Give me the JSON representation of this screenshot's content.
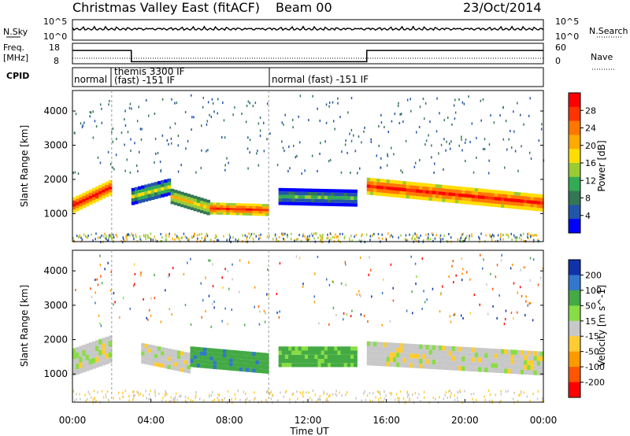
{
  "header": {
    "title": "Christmas Valley East (fitACF)",
    "beam": "Beam 00",
    "date": "23/Oct/2014"
  },
  "panels": {
    "nsky": {
      "label": "N.Sky",
      "ticks": [
        "10^5",
        "10^0"
      ],
      "right_ticks": [
        "10^5",
        "10^0"
      ],
      "right_label": "N.Search"
    },
    "freq": {
      "label": "Freq.",
      "unit": "[MHz]",
      "ticks": [
        "18",
        "8"
      ],
      "right_ticks": [
        "60",
        "0"
      ],
      "right_label": "Nave"
    },
    "cpid": {
      "label": "CPID",
      "segments": [
        {
          "text": "normal"
        },
        {
          "text": "themis 3300 IF"
        },
        {
          "text": "(fast) -151 IF"
        },
        {
          "text": "normal (fast) -151 IF"
        }
      ]
    }
  },
  "power_colorbar": {
    "label": "Power [dB]",
    "ticks": [
      "28",
      "24",
      "20",
      "16",
      "12",
      "8",
      "4"
    ],
    "colors": [
      "#ff0000",
      "#ff3300",
      "#ff7700",
      "#ffaa00",
      "#ffdd00",
      "#99cc33",
      "#33aa55",
      "#337755",
      "#2255aa",
      "#0000ff"
    ]
  },
  "velocity_colorbar": {
    "label": "Velocity [m s^-1]",
    "ticks": [
      "200",
      "100",
      "50",
      "15",
      "-15",
      "-50",
      "-100",
      "-200"
    ],
    "colors": [
      "#1133aa",
      "#3377cc",
      "#44aa44",
      "#88dd44",
      "#c8c8c8",
      "#ffcc33",
      "#ff9900",
      "#ff5500",
      "#ff0000"
    ]
  },
  "axes": {
    "ylabel": "Slant Range [km]",
    "yticks": [
      "4000",
      "3000",
      "2000",
      "1000"
    ],
    "xticks": [
      "00:00",
      "04:00",
      "08:00",
      "12:00",
      "16:00",
      "20:00",
      "00:00"
    ],
    "xlabel": "Time UT"
  },
  "chart_data": {
    "type": "heatmap",
    "title": "Christmas Valley East (fitACF) Beam 00  23/Oct/2014",
    "xlabel": "Time UT",
    "ylabel": "Slant Range [km]",
    "xlim_hours": [
      0,
      24
    ],
    "ylim_km": [
      180,
      4600
    ],
    "frequency_mhz": [
      {
        "start_hour": 0.0,
        "end_hour": 3.0,
        "freq": 14.5
      },
      {
        "start_hour": 3.0,
        "end_hour": 15.0,
        "freq": 9.0
      },
      {
        "start_hour": 15.0,
        "end_hour": 24.0,
        "freq": 14.5
      }
    ],
    "cpid_changes_hours": [
      2.0,
      10.0
    ],
    "power_bands": [
      {
        "start_hour": 0.0,
        "end_hour": 2.0,
        "range_center_km": [
          1250,
          1800
        ],
        "width_km": 450,
        "power_db": 28
      },
      {
        "start_hour": 3.0,
        "end_hour": 5.0,
        "range_center_km": [
          1500,
          1800
        ],
        "width_km": 500,
        "power_db": 14
      },
      {
        "start_hour": 5.0,
        "end_hour": 7.0,
        "range_center_km": [
          1500,
          1150
        ],
        "width_km": 450,
        "power_db": 18
      },
      {
        "start_hour": 7.0,
        "end_hour": 10.0,
        "range_center_km": [
          1150,
          1100
        ],
        "width_km": 350,
        "power_db": 26
      },
      {
        "start_hour": 10.5,
        "end_hour": 14.5,
        "range_center_km": [
          1500,
          1450
        ],
        "width_km": 500,
        "power_db": 10
      },
      {
        "start_hour": 15.0,
        "end_hour": 24.0,
        "range_center_km": [
          1800,
          1300
        ],
        "width_km": 500,
        "power_db": 27
      }
    ],
    "velocity_bands": [
      {
        "start_hour": 0.0,
        "end_hour": 2.0,
        "range_center_km": [
          1350,
          1750
        ],
        "width_km": 800,
        "velocity": 0
      },
      {
        "start_hour": 3.5,
        "end_hour": 6.0,
        "range_center_km": [
          1600,
          1300
        ],
        "width_km": 600,
        "velocity": 0
      },
      {
        "start_hour": 6.0,
        "end_hour": 10.0,
        "range_center_km": [
          1500,
          1300
        ],
        "width_km": 600,
        "velocity": 60
      },
      {
        "start_hour": 10.5,
        "end_hour": 14.5,
        "range_center_km": [
          1500,
          1500
        ],
        "width_km": 600,
        "velocity": 40
      },
      {
        "start_hour": 15.0,
        "end_hour": 24.0,
        "range_center_km": [
          1600,
          1300
        ],
        "width_km": 700,
        "velocity": 0
      }
    ]
  }
}
